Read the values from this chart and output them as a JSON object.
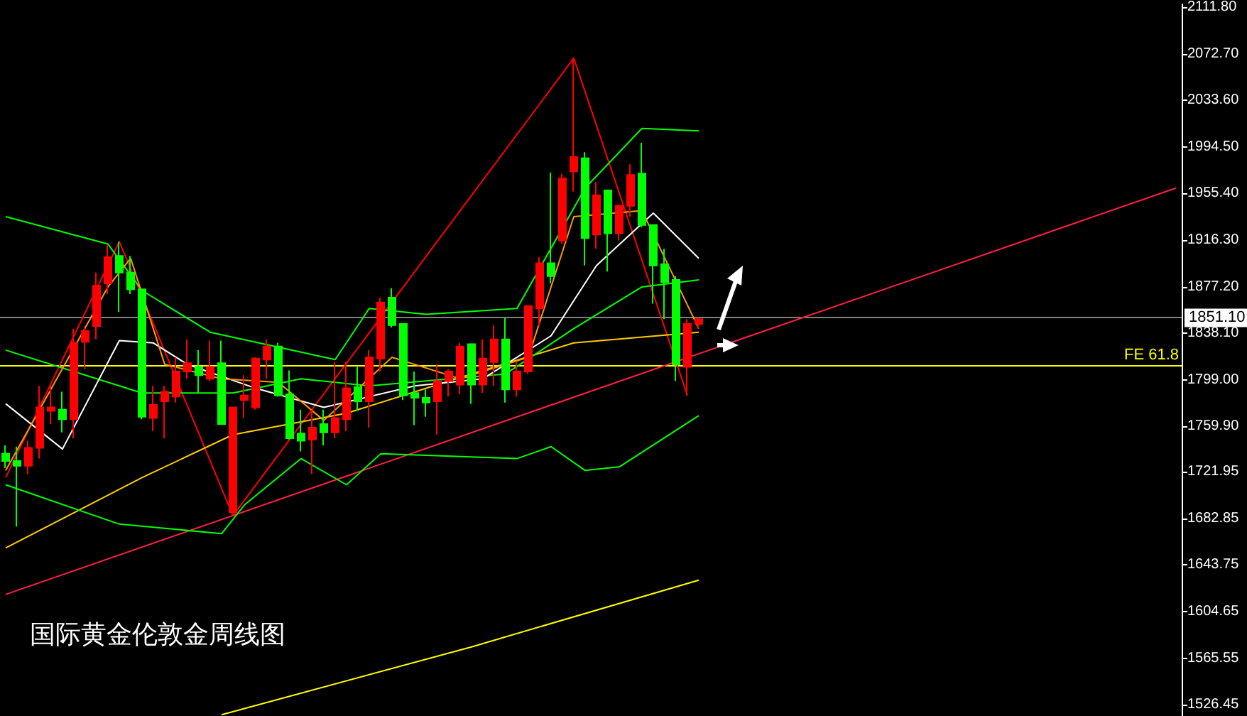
{
  "chart_data": {
    "type": "candlestick",
    "title": "国际黄金伦敦金周线图",
    "categories": [
      null,
      null,
      null,
      null,
      null,
      null,
      null,
      null,
      null,
      null,
      null,
      null,
      null,
      null,
      null,
      null,
      null,
      null,
      null,
      null,
      null,
      null,
      null,
      null,
      null,
      null,
      null,
      null,
      null,
      null,
      null,
      null,
      null,
      null,
      null,
      null,
      null,
      null,
      null,
      null,
      null,
      null,
      null,
      null,
      null,
      null,
      null,
      null,
      null,
      null,
      null,
      null,
      null,
      null,
      null,
      null,
      null,
      null,
      null,
      null,
      null,
      null,
      null,
      null,
      null,
      null,
      null,
      null,
      null,
      null,
      null,
      null,
      null,
      null,
      null,
      null,
      null,
      null,
      null,
      null,
      null,
      null,
      null,
      null,
      null,
      null,
      null,
      null,
      null,
      null,
      null,
      null,
      null,
      null,
      null,
      null,
      null,
      null,
      null,
      null,
      null,
      null,
      null,
      null
    ],
    "ohlc": [
      [
        1737,
        1744,
        1725,
        1731
      ],
      [
        1731,
        1743,
        1676,
        1727
      ],
      [
        1727,
        1748,
        1720,
        1742
      ],
      [
        1742,
        1794,
        1733,
        1776
      ],
      [
        1773,
        1795,
        1762,
        1776
      ],
      [
        1774,
        1789,
        1755,
        1766
      ],
      [
        1766,
        1842,
        1750,
        1830
      ],
      [
        1831,
        1844,
        1808,
        1840
      ],
      [
        1844,
        1889,
        1833,
        1878
      ],
      [
        1880,
        1912,
        1871,
        1902
      ],
      [
        1903,
        1915,
        1856,
        1889
      ],
      [
        1889,
        1903,
        1871,
        1875
      ],
      [
        1875,
        1875,
        1766,
        1768
      ],
      [
        1767,
        1794,
        1756,
        1778
      ],
      [
        1781,
        1794,
        1750,
        1789
      ],
      [
        1785,
        1818,
        1780,
        1806
      ],
      [
        1806,
        1833,
        1800,
        1813
      ],
      [
        1810,
        1824,
        1788,
        1803
      ],
      [
        1800,
        1832,
        1798,
        1810
      ],
      [
        1813,
        1832,
        1762,
        1762
      ],
      [
        1688,
        1776,
        1685,
        1776
      ],
      [
        1782,
        1803,
        1767,
        1786
      ],
      [
        1776,
        1818,
        1774,
        1817
      ],
      [
        1816,
        1833,
        1800,
        1827
      ],
      [
        1827,
        1830,
        1785,
        1786
      ],
      [
        1787,
        1807,
        1749,
        1750
      ],
      [
        1754,
        1774,
        1739,
        1748
      ],
      [
        1749,
        1774,
        1720,
        1759
      ],
      [
        1762,
        1774,
        1744,
        1755
      ],
      [
        1755,
        1814,
        1750,
        1767
      ],
      [
        1766,
        1814,
        1756,
        1792
      ],
      [
        1793,
        1810,
        1773,
        1781
      ],
      [
        1781,
        1824,
        1759,
        1818
      ],
      [
        1817,
        1868,
        1806,
        1864
      ],
      [
        1868,
        1876,
        1843,
        1845
      ],
      [
        1846,
        1846,
        1782,
        1786
      ],
      [
        1788,
        1806,
        1761,
        1784
      ],
      [
        1784,
        1791,
        1768,
        1780
      ],
      [
        1781,
        1812,
        1753,
        1798
      ],
      [
        1798,
        1808,
        1785,
        1806
      ],
      [
        1795,
        1830,
        1787,
        1827
      ],
      [
        1829,
        1829,
        1779,
        1795
      ],
      [
        1795,
        1833,
        1788,
        1817
      ],
      [
        1814,
        1845,
        1794,
        1833
      ],
      [
        1833,
        1851,
        1780,
        1791
      ],
      [
        1791,
        1814,
        1785,
        1806
      ],
      [
        1806,
        1861,
        1804,
        1861
      ],
      [
        1859,
        1902,
        1844,
        1897
      ],
      [
        1897,
        1973,
        1880,
        1886
      ],
      [
        1916,
        1972,
        1913,
        1968
      ],
      [
        1974,
        2069,
        1957,
        1986
      ],
      [
        1985,
        1990,
        1895,
        1918
      ],
      [
        1921,
        1965,
        1909,
        1954
      ],
      [
        1958,
        1958,
        1890,
        1922
      ],
      [
        1922,
        1946,
        1916,
        1945
      ],
      [
        1945,
        1980,
        1936,
        1971
      ],
      [
        1972,
        1998,
        1927,
        1929
      ],
      [
        1929,
        1929,
        1863,
        1895
      ],
      [
        1896,
        1909,
        1850,
        1881
      ],
      [
        1883,
        1886,
        1798,
        1812
      ],
      [
        1810,
        1850,
        1786,
        1846
      ],
      [
        1846,
        1851,
        1842,
        1850
      ],
      null,
      null,
      null,
      null,
      null,
      null,
      null,
      null,
      null,
      null,
      null,
      null,
      null,
      null,
      null,
      null,
      null,
      null,
      null,
      null,
      null,
      null,
      null,
      null,
      null,
      null,
      null,
      null,
      null,
      null,
      null,
      null,
      null,
      null,
      null,
      null,
      null,
      null,
      null,
      null,
      null,
      null
    ],
    "colors": [
      "#00ff00",
      "#00ff00",
      "#ff0000",
      "#ff0000",
      "#ff0000",
      "#00ff00",
      "#ff0000",
      "#ff0000",
      "#ff0000",
      "#ff0000",
      "#00ff00",
      "#00ff00",
      "#00ff00",
      "#ff0000",
      "#ff0000",
      "#ff0000",
      "#ff0000",
      "#00ff00",
      "#ff0000",
      "#00ff00",
      "#ff0000",
      "#ff0000",
      "#ff0000",
      "#ff0000",
      "#00ff00",
      "#00ff00",
      "#00ff00",
      "#ff0000",
      "#00ff00",
      "#ff0000",
      "#ff0000",
      "#00ff00",
      "#ff0000",
      "#ff0000",
      "#00ff00",
      "#00ff00",
      "#00ff00",
      "#00ff00",
      "#ff0000",
      "#ff0000",
      "#ff0000",
      "#00ff00",
      "#ff0000",
      "#ff0000",
      "#00ff00",
      "#ff0000",
      "#ff0000",
      "#ff0000",
      "#00ff00",
      "#ff0000",
      "#ff0000",
      "#00ff00",
      "#ff0000",
      "#00ff00",
      "#ff0000",
      "#ff0000",
      "#00ff00",
      "#00ff00",
      "#00ff00",
      "#00ff00",
      "#ff0000",
      "#ff0000",
      null,
      null,
      null,
      null,
      null,
      null,
      null,
      null,
      null,
      null,
      null,
      null,
      null,
      null,
      null,
      null,
      null,
      null,
      null,
      null,
      null,
      null,
      null,
      null,
      null,
      null,
      null,
      null,
      null,
      null,
      null,
      null,
      null,
      null,
      null,
      null,
      null,
      null,
      null,
      null,
      null,
      null
    ],
    "series": [
      {
        "type": "line",
        "color": "#ff0000",
        "values": [
          1717,
          null,
          null,
          null,
          null,
          null,
          null,
          null,
          null,
          null,
          1915,
          null,
          null,
          null,
          null,
          null,
          null,
          null,
          null,
          null,
          1685,
          null,
          null,
          null,
          null,
          null,
          null,
          null,
          null,
          null,
          null,
          null,
          null,
          null,
          null,
          null,
          null,
          null,
          null,
          null,
          null,
          null,
          null,
          null,
          null,
          null,
          null,
          null,
          null,
          null,
          2069,
          null,
          null,
          null,
          null,
          null,
          null,
          null,
          null,
          null,
          1786,
          null,
          null,
          null,
          null,
          null,
          null,
          null,
          null,
          null,
          null,
          null,
          null,
          null,
          null,
          null,
          null,
          null,
          null,
          null,
          null,
          null,
          null,
          null,
          null,
          null,
          null,
          null,
          null,
          null,
          null,
          null,
          null,
          null,
          null,
          null,
          null,
          null,
          null,
          null,
          null,
          null,
          null,
          null
        ]
      },
      {
        "type": "line",
        "color": "#ff2040",
        "values": [
          1619,
          null,
          null,
          null,
          null,
          null,
          null,
          null,
          null,
          null,
          null,
          null,
          null,
          null,
          null,
          null,
          null,
          null,
          null,
          null,
          null,
          null,
          null,
          null,
          null,
          null,
          null,
          null,
          null,
          null,
          null,
          null,
          null,
          null,
          null,
          null,
          null,
          null,
          null,
          null,
          null,
          null,
          null,
          null,
          null,
          null,
          null,
          null,
          null,
          null,
          null,
          null,
          null,
          null,
          null,
          null,
          null,
          null,
          null,
          null,
          null,
          null,
          null,
          null,
          null,
          null,
          null,
          null,
          null,
          null,
          null,
          null,
          null,
          null,
          null,
          null,
          null,
          null,
          null,
          null,
          null,
          null,
          null,
          null,
          null,
          null,
          null,
          null,
          null,
          null,
          null,
          null,
          null,
          null,
          null,
          null,
          null,
          null,
          null,
          null,
          null,
          null,
          null,
          1960
        ]
      },
      {
        "type": "line",
        "color": "#ffcc00",
        "values": [
          1658,
          null,
          null,
          null,
          null,
          null,
          null,
          null,
          null,
          null,
          null,
          null,
          1717,
          null,
          null,
          null,
          null,
          null,
          null,
          null,
          1753,
          null,
          null,
          null,
          null,
          null,
          null,
          null,
          null,
          null,
          1771,
          null,
          null,
          null,
          null,
          null,
          null,
          null,
          null,
          null,
          null,
          1804,
          null,
          null,
          null,
          null,
          null,
          null,
          null,
          null,
          1830,
          null,
          null,
          null,
          null,
          null,
          null,
          null,
          null,
          null,
          null,
          1839,
          null,
          null,
          null,
          null,
          null,
          null,
          null,
          null,
          null,
          null,
          null,
          null,
          null,
          null,
          null,
          null,
          null,
          null,
          null,
          null,
          null,
          null,
          null,
          null,
          null,
          null,
          null,
          null,
          null,
          null,
          null,
          null,
          null,
          null,
          null,
          null,
          null,
          null,
          null,
          null,
          null,
          null
        ]
      },
      {
        "type": "line",
        "color": "#ffff00",
        "values": [
          null,
          null,
          null,
          null,
          null,
          null,
          null,
          null,
          null,
          null,
          null,
          null,
          null,
          null,
          null,
          null,
          null,
          null,
          null,
          1518,
          null,
          null,
          null,
          null,
          null,
          null,
          null,
          null,
          null,
          null,
          null,
          null,
          null,
          null,
          null,
          null,
          null,
          null,
          null,
          null,
          null,
          1575,
          null,
          null,
          null,
          null,
          null,
          null,
          null,
          null,
          null,
          null,
          null,
          null,
          null,
          null,
          null,
          null,
          null,
          null,
          null,
          1631,
          null,
          null,
          null,
          null,
          null,
          null,
          null,
          null,
          null,
          null,
          null,
          null,
          null,
          null,
          null,
          null,
          null,
          null,
          null,
          null,
          null,
          null,
          null,
          null,
          null,
          null,
          null,
          null,
          null,
          null,
          null,
          null,
          null,
          null,
          null,
          null,
          null,
          null,
          null,
          null,
          null,
          null
        ]
      },
      {
        "type": "line",
        "color": "#00ff00",
        "values": [
          1936,
          null,
          null,
          null,
          null,
          null,
          null,
          null,
          null,
          1913,
          null,
          null,
          1874,
          null,
          null,
          null,
          null,
          null,
          1839,
          null,
          null,
          null,
          null,
          null,
          null,
          null,
          null,
          null,
          null,
          1816,
          null,
          null,
          1859,
          null,
          null,
          null,
          null,
          1854,
          null,
          null,
          null,
          null,
          null,
          null,
          null,
          1859,
          null,
          null,
          null,
          null,
          null,
          1960,
          null,
          null,
          null,
          null,
          2010,
          null,
          null,
          null,
          null,
          2008,
          null,
          null,
          null,
          null,
          null,
          null,
          null,
          null,
          null,
          null,
          null,
          null,
          null,
          null,
          null,
          null,
          null,
          null,
          null,
          null,
          null,
          null,
          null,
          null,
          null,
          null,
          null,
          null,
          null,
          null,
          null,
          null,
          null,
          null,
          null,
          null,
          null,
          null,
          null,
          null,
          null,
          null
        ]
      },
      {
        "type": "line",
        "color": "#00ff00",
        "values": [
          1711,
          null,
          null,
          null,
          null,
          null,
          null,
          null,
          null,
          null,
          1678,
          null,
          null,
          null,
          null,
          null,
          null,
          null,
          null,
          1670,
          null,
          1694,
          null,
          null,
          null,
          null,
          1733,
          null,
          null,
          null,
          1711,
          null,
          null,
          1737,
          null,
          null,
          null,
          null,
          null,
          null,
          null,
          null,
          null,
          null,
          null,
          1733,
          null,
          null,
          1743,
          null,
          null,
          1723,
          null,
          null,
          1726,
          null,
          null,
          null,
          null,
          null,
          null,
          1769,
          null,
          null,
          null,
          null,
          null,
          null,
          null,
          null,
          null,
          null,
          null,
          null,
          null,
          null,
          null,
          null,
          null,
          null,
          null,
          null,
          null,
          null,
          null,
          null,
          null,
          null,
          null,
          null,
          null,
          null,
          null,
          null,
          null,
          null,
          null,
          null,
          null,
          null,
          null,
          null,
          null,
          null
        ]
      },
      {
        "type": "line",
        "color": "#00ff00",
        "values": [
          1824,
          null,
          null,
          null,
          null,
          null,
          null,
          null,
          null,
          null,
          null,
          null,
          1788,
          null,
          null,
          null,
          null,
          null,
          null,
          null,
          1788,
          null,
          null,
          null,
          null,
          null,
          1800,
          null,
          null,
          null,
          null,
          null,
          1794,
          null,
          null,
          null,
          null,
          null,
          null,
          null,
          null,
          null,
          null,
          null,
          1804,
          null,
          null,
          null,
          null,
          null,
          1842,
          null,
          null,
          null,
          null,
          null,
          1877,
          null,
          null,
          null,
          null,
          1883,
          null,
          null,
          null,
          null,
          null,
          null,
          null,
          null,
          null,
          null,
          null,
          null,
          null,
          null,
          null,
          null,
          null,
          null,
          null,
          null,
          null,
          null,
          null,
          null,
          null,
          null,
          null,
          null,
          null,
          null,
          null,
          null,
          null,
          null,
          null,
          null,
          null,
          null,
          null,
          null,
          null,
          null
        ]
      },
      {
        "type": "line",
        "color": "#ffffff",
        "values": [
          1779,
          null,
          null,
          null,
          null,
          1741,
          null,
          null,
          null,
          null,
          1832,
          null,
          null,
          1830,
          null,
          null,
          1812,
          null,
          null,
          null,
          null,
          null,
          1792,
          null,
          null,
          null,
          null,
          null,
          1776,
          null,
          null,
          null,
          null,
          null,
          null,
          null,
          1794,
          null,
          null,
          null,
          null,
          null,
          1800,
          null,
          null,
          null,
          null,
          null,
          1836,
          null,
          null,
          null,
          1895,
          null,
          null,
          null,
          null,
          1939,
          null,
          null,
          null,
          1901,
          null,
          null,
          null,
          null,
          null,
          null,
          null,
          null,
          null,
          null,
          null,
          null,
          null,
          null,
          null,
          null,
          null,
          null,
          null,
          null,
          null,
          null,
          null,
          null,
          null,
          null,
          null,
          null,
          null,
          null,
          null,
          null,
          null,
          null,
          null,
          null,
          null,
          null,
          null,
          null,
          null,
          null
        ]
      },
      {
        "type": "line",
        "color": "#ff9900",
        "values": [
          1723,
          null,
          null,
          null,
          null,
          null,
          null,
          null,
          null,
          1877,
          null,
          1901,
          null,
          null,
          1812,
          null,
          null,
          null,
          null,
          1800,
          null,
          null,
          null,
          null,
          1797,
          null,
          null,
          null,
          1765,
          null,
          null,
          null,
          null,
          null,
          1818,
          null,
          null,
          null,
          null,
          null,
          1800,
          null,
          null,
          null,
          null,
          null,
          1818,
          null,
          null,
          null,
          1936,
          null,
          null,
          null,
          null,
          null,
          1941,
          null,
          null,
          null,
          null,
          1842,
          null,
          null,
          null,
          null,
          null,
          null,
          null,
          null,
          null,
          null,
          null,
          null,
          null,
          null,
          null,
          null,
          null,
          null,
          null,
          null,
          null,
          null,
          null,
          null,
          null,
          null,
          null,
          null,
          null,
          null,
          null,
          null,
          null,
          null,
          null,
          null,
          null,
          null,
          null,
          null,
          null,
          null
        ]
      }
    ],
    "ylim": [
      1517,
      2114.2
    ],
    "yticks": [
      {
        "value": 1526.45,
        "label": "1526.45"
      },
      {
        "value": 1565.55,
        "label": "1565.55"
      },
      {
        "value": 1604.65,
        "label": "1604.65"
      },
      {
        "value": 1643.75,
        "label": "1643.75"
      },
      {
        "value": 1682.85,
        "label": "1682.85"
      },
      {
        "value": 1721.95,
        "label": "1721.95"
      },
      {
        "value": 1759.9,
        "label": "1759.90"
      },
      {
        "value": 1799,
        "label": "1799.00"
      },
      {
        "value": 1838.1,
        "label": "1838.10"
      },
      {
        "value": 1877.2,
        "label": "1877.20"
      },
      {
        "value": 1916.3,
        "label": "1916.30"
      },
      {
        "value": 1955.4,
        "label": "1955.40"
      },
      {
        "value": 1994.5,
        "label": "1994.50"
      },
      {
        "value": 2033.6,
        "label": "2033.60"
      },
      {
        "value": 2072.7,
        "label": "2072.70"
      },
      {
        "value": 2111.8,
        "label": "2111.80"
      }
    ],
    "ref_lines": [
      {
        "axis": "y",
        "value": 1851.1,
        "label": "1851.10",
        "color": "#808080"
      },
      {
        "axis": "y",
        "value": 1811,
        "label": "FE 61.8",
        "color": "#ffff00"
      }
    ],
    "tick_labels": "y"
  }
}
